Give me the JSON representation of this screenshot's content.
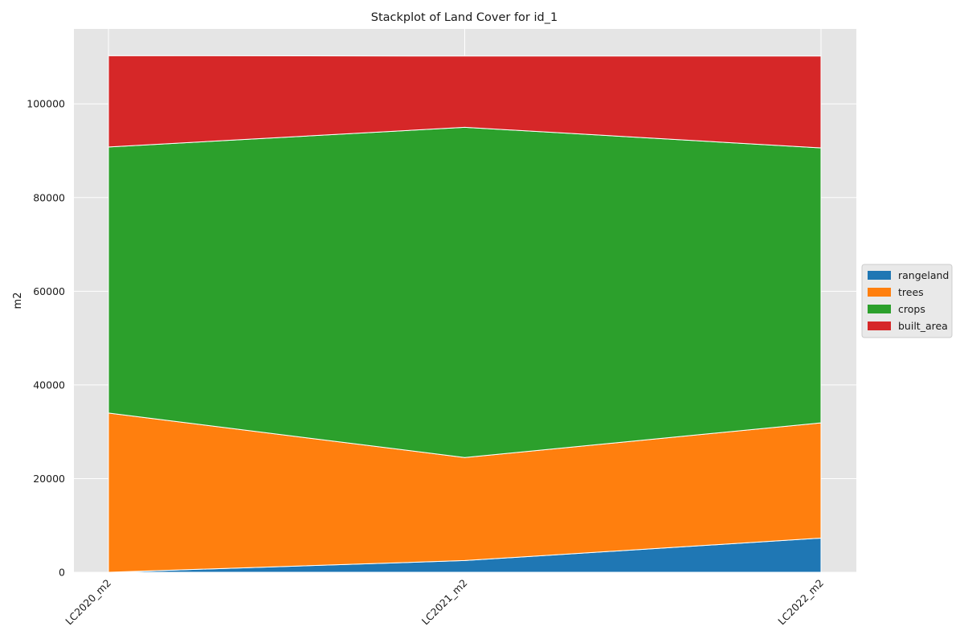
{
  "chart_data": {
    "type": "area",
    "stacked": true,
    "title": "Stackplot of Land Cover for id_1",
    "xlabel": "",
    "ylabel": "m2",
    "categories": [
      "LC2020_m2",
      "LC2021_m2",
      "LC2022_m2"
    ],
    "ylim": [
      0,
      116000
    ],
    "yticks": [
      0,
      20000,
      40000,
      60000,
      80000,
      100000
    ],
    "series": [
      {
        "name": "rangeland",
        "color": "#1f77b4",
        "values": [
          0,
          2500,
          7300
        ]
      },
      {
        "name": "trees",
        "color": "#ff7f0e",
        "values": [
          34000,
          22000,
          24600
        ]
      },
      {
        "name": "crops",
        "color": "#2ca02c",
        "values": [
          56800,
          70500,
          58700
        ]
      },
      {
        "name": "built_area",
        "color": "#d62728",
        "values": [
          19500,
          15200,
          19600
        ]
      }
    ],
    "grid": true,
    "background": "#e5e5e5",
    "legend_position": "right"
  }
}
